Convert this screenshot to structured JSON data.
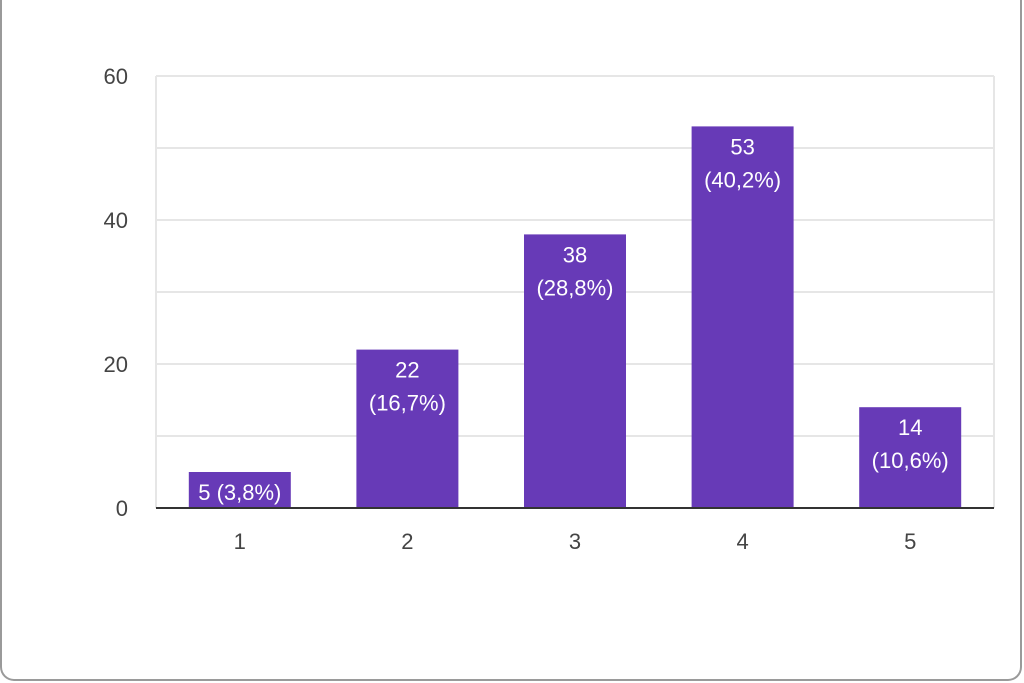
{
  "chart_data": {
    "type": "bar",
    "categories": [
      "1",
      "2",
      "3",
      "4",
      "5"
    ],
    "values": [
      5,
      22,
      38,
      53,
      14
    ],
    "data_labels": [
      [
        "5 (3,8%)"
      ],
      [
        "22",
        "(16,7%)"
      ],
      [
        "38",
        "(28,8%)"
      ],
      [
        "53",
        "(40,2%)"
      ],
      [
        "14",
        "(10,6%)"
      ]
    ],
    "ylim": [
      0,
      60
    ],
    "y_ticks": [
      "0",
      "20",
      "40",
      "60"
    ],
    "grid": true,
    "title": "",
    "xlabel": "",
    "ylabel": ""
  },
  "colors": {
    "bar": "#673ab7",
    "grid": "#e6e6e6",
    "axis": "#333333"
  }
}
